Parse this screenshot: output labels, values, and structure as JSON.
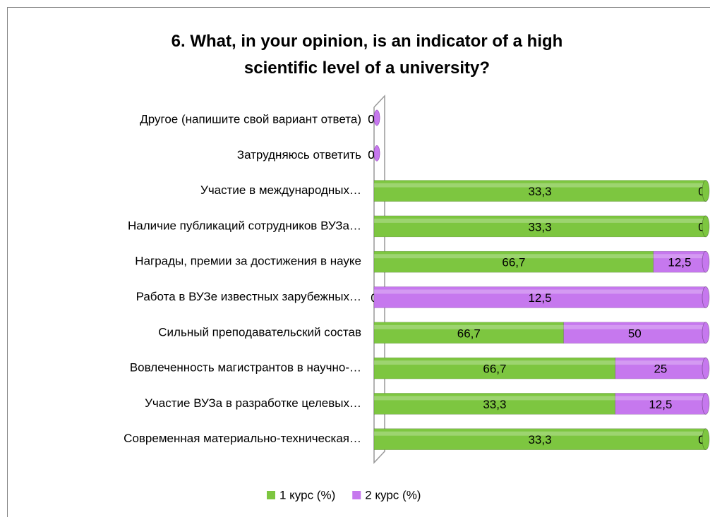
{
  "chart_data": {
    "type": "bar",
    "stacked": "percent",
    "orientation": "horizontal",
    "title": "6. What, in your opinion, is an indicator of a high scientific level of a university?",
    "categories": [
      "Другое (напишите свой вариант ответа)",
      "Затрудняюсь ответить",
      "Участие в международных…",
      "Наличие публикаций сотрудников ВУЗа…",
      "Награды, премии за достижения в науке",
      "Работа в ВУЗе известных зарубежных…",
      "Сильный преподавательский состав",
      "Вовлеченность магистрантов в научно-…",
      "Участие ВУЗа в разработке целевых…",
      "Современная материально-техническая…"
    ],
    "series": [
      {
        "name": "1 курс (%)",
        "color": "#7dc640",
        "values": [
          0,
          0,
          33.3,
          33.3,
          66.7,
          0,
          66.7,
          66.7,
          33.3,
          33.3
        ],
        "value_labels": [
          "0",
          "0",
          "33,3",
          "33,3",
          "66,7",
          "0",
          "66,7",
          "66,7",
          "33,3",
          "33,3"
        ]
      },
      {
        "name": "2 курс (%)",
        "color": "#c678ee",
        "values": [
          0,
          0,
          0,
          0,
          12.5,
          12.5,
          50,
          25,
          12.5,
          0
        ],
        "value_labels": [
          "0",
          "0",
          "0",
          "0",
          "12,5",
          "12,5",
          "50",
          "25",
          "12,5",
          "0"
        ]
      }
    ],
    "legend": "bottom"
  }
}
